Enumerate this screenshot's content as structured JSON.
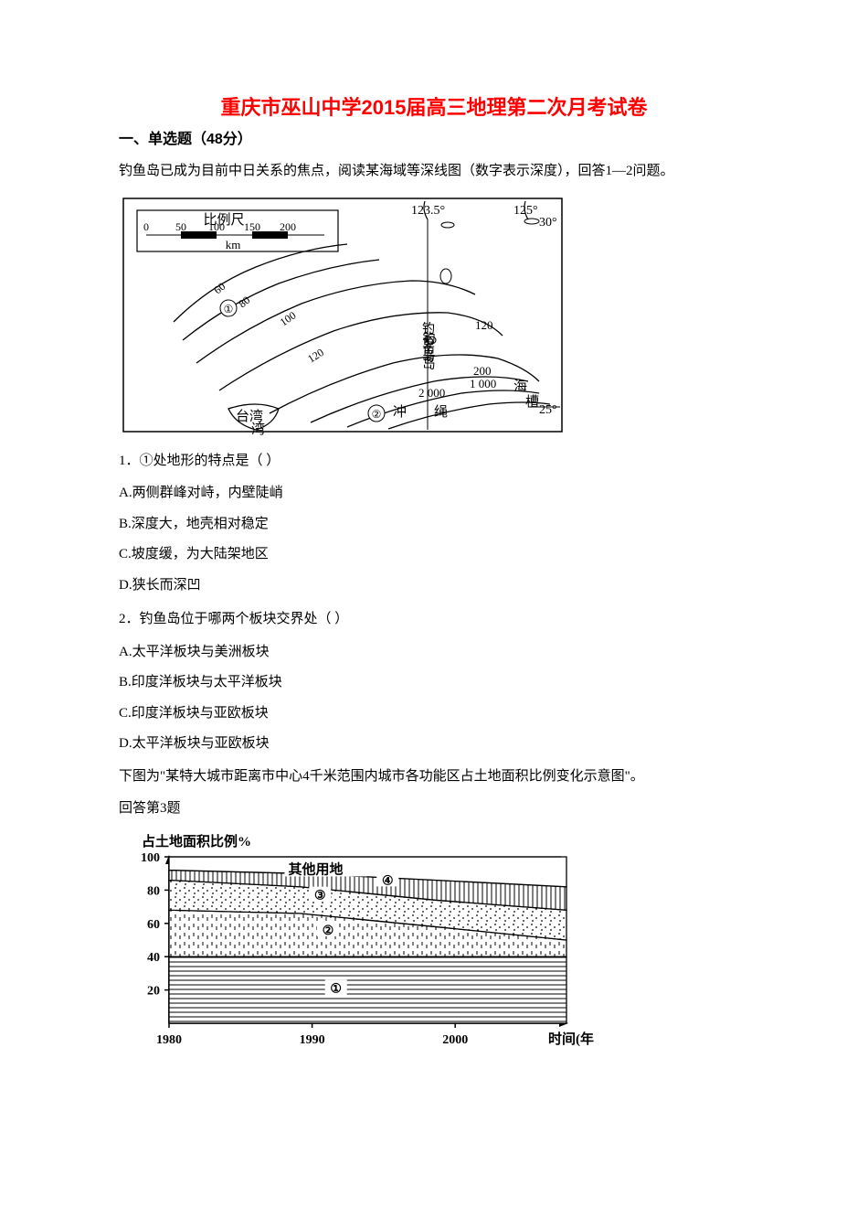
{
  "title": {
    "text": "重庆市巫山中学2015届高三地理第二次月考试卷",
    "color": "#ff0000",
    "fontsize": 22
  },
  "section1": {
    "label": "一、单选题（48分）",
    "fontsize": 16
  },
  "intro1": "钓鱼岛已成为目前中日关系的焦点，阅读某海域等深线图（数字表示深度），回答1—2问题。",
  "map1": {
    "scale_label": "比例尺",
    "scale_unit": "km",
    "scale_ticks": [
      "0",
      "50",
      "100",
      "150",
      "200"
    ],
    "lon_labels": [
      "123.5°",
      "125°"
    ],
    "lat_labels": [
      "30°",
      "25°"
    ],
    "places": {
      "diaoyu": "钓鱼岛",
      "taiwan": "台湾",
      "okinawa": "冲绳",
      "trough1": "海",
      "trough2": "槽"
    },
    "depths": [
      "60",
      "80",
      "100",
      "120",
      "120",
      "200",
      "1 000",
      "2 000"
    ],
    "markers": [
      "①",
      "②"
    ]
  },
  "q1": {
    "stem": "1．①处地形的特点是（    ）",
    "A": "A.两侧群峰对峙，内壁陡峭",
    "B": "B.深度大，地壳相对稳定",
    "C": "C.坡度缓，为大陆架地区",
    "D": "D.狭长而深凹"
  },
  "q2": {
    "stem": "2．钓鱼岛位于哪两个板块交界处（    ）",
    "A": "A.太平洋板块与美洲板块",
    "B": "B.印度洋板块与太平洋板块",
    "C": "C.印度洋板块与亚欧板块",
    "D": "D.太平洋板块与亚欧板块"
  },
  "intro3": "下图为\"某特大城市距离市中心4千米范围内城市各功能区占土地面积比例变化示意图\"。",
  "intro3b": "回答第3题",
  "chart1": {
    "type": "area",
    "title": "占土地面积比例%",
    "title_fontsize": 15,
    "xlabel": "时间(年)",
    "ylim": [
      0,
      100
    ],
    "yticks": [
      20,
      40,
      60,
      80,
      100
    ],
    "xticks": [
      "1980",
      "1990",
      "2000"
    ],
    "region_labels": [
      "①",
      "②",
      "③",
      "④"
    ],
    "top_label": "其他用地",
    "series": {
      "s1_top": [
        40,
        40,
        40,
        40
      ],
      "s2_top": [
        68,
        66,
        58,
        50
      ],
      "s3_top": [
        86,
        82,
        74,
        68
      ],
      "s4_top": [
        92,
        90,
        86,
        82
      ],
      "x": [
        0,
        0.33,
        0.67,
        1.0
      ]
    },
    "colors": {
      "background": "#ffffff",
      "axis": "#000000",
      "line": "#000000"
    },
    "patterns": {
      "s1": "horizontal-lines",
      "s2": "vertical-dashes",
      "s3": "dots",
      "s4": "vertical-lines"
    }
  }
}
